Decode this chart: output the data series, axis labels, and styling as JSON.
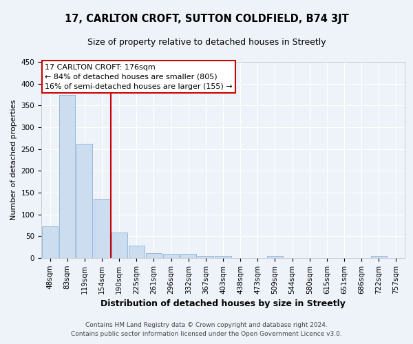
{
  "title": "17, CARLTON CROFT, SUTTON COLDFIELD, B74 3JT",
  "subtitle": "Size of property relative to detached houses in Streetly",
  "xlabel": "Distribution of detached houses by size in Streetly",
  "ylabel": "Number of detached properties",
  "categories": [
    "48sqm",
    "83sqm",
    "119sqm",
    "154sqm",
    "190sqm",
    "225sqm",
    "261sqm",
    "296sqm",
    "332sqm",
    "367sqm",
    "403sqm",
    "438sqm",
    "473sqm",
    "509sqm",
    "544sqm",
    "580sqm",
    "615sqm",
    "651sqm",
    "686sqm",
    "722sqm",
    "757sqm"
  ],
  "values": [
    72,
    375,
    262,
    136,
    59,
    29,
    11,
    9,
    10,
    5,
    5,
    0,
    0,
    5,
    0,
    0,
    0,
    0,
    0,
    4,
    0
  ],
  "bar_color": "#ccddf0",
  "bar_edgecolor": "#8ab0d8",
  "red_line_index": 3.5,
  "annotation_title": "17 CARLTON CROFT: 176sqm",
  "annotation_line1": "← 84% of detached houses are smaller (805)",
  "annotation_line2": "16% of semi-detached houses are larger (155) →",
  "annotation_box_color": "#ffffff",
  "annotation_box_edgecolor": "#cc0000",
  "red_line_color": "#cc0000",
  "ylim": [
    0,
    450
  ],
  "yticks": [
    0,
    50,
    100,
    150,
    200,
    250,
    300,
    350,
    400,
    450
  ],
  "footer1": "Contains HM Land Registry data © Crown copyright and database right 2024.",
  "footer2": "Contains public sector information licensed under the Open Government Licence v3.0.",
  "background_color": "#eef3fa",
  "plot_bg_color": "#eef3fa",
  "title_fontsize": 10.5,
  "subtitle_fontsize": 9,
  "xlabel_fontsize": 9,
  "ylabel_fontsize": 8,
  "tick_fontsize": 7.5,
  "annotation_fontsize": 8,
  "footer_fontsize": 6.5
}
